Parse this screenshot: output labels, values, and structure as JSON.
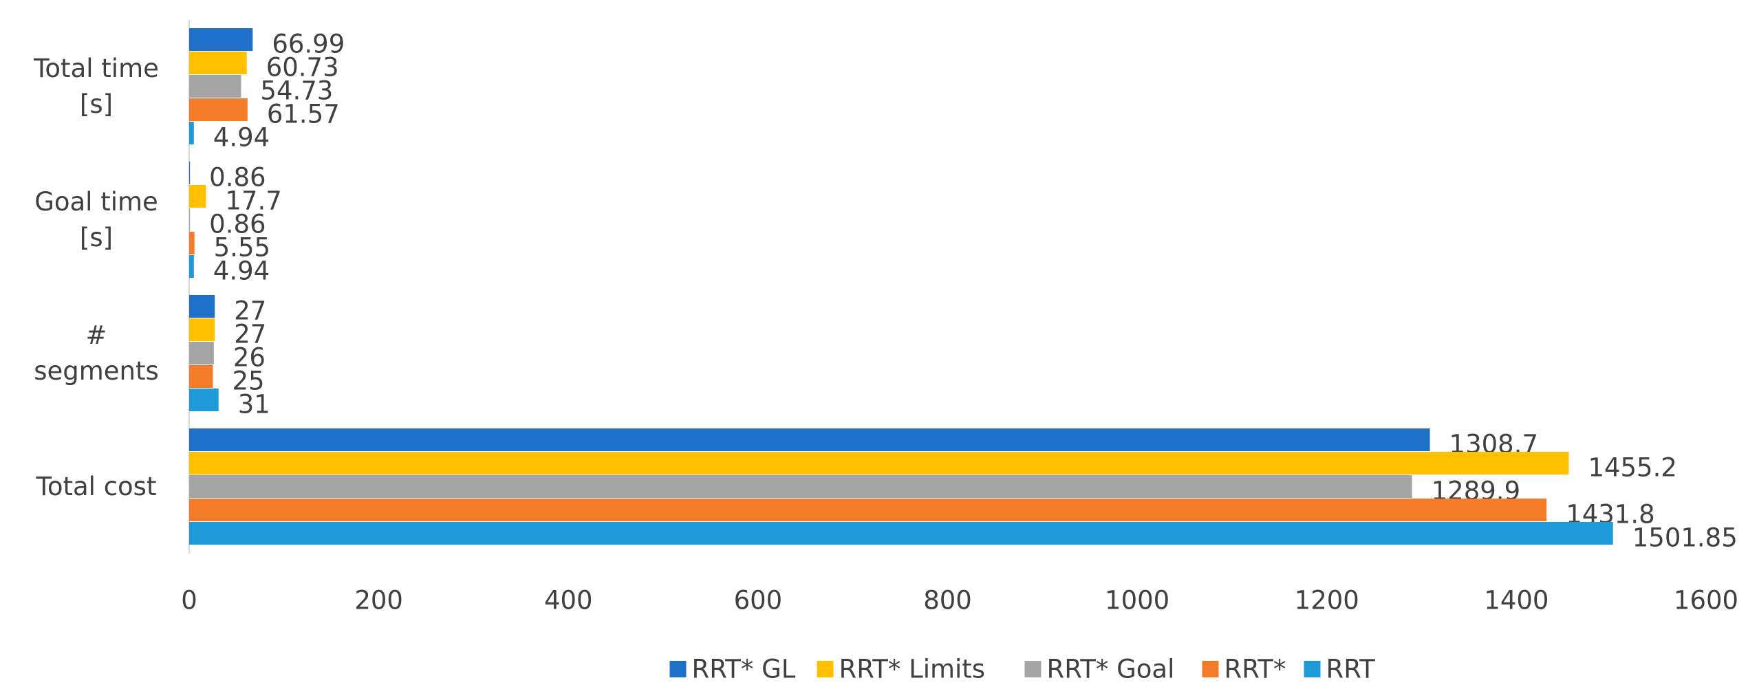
{
  "chart_data": {
    "type": "hbar",
    "categories": [
      "Total time [s]",
      "Goal time [s]",
      "# segments",
      "Total cost"
    ],
    "series": [
      {
        "name": "RRT* GL",
        "color": "#1f70c8",
        "values": [
          66.99,
          0.86,
          27,
          1308.7
        ]
      },
      {
        "name": "RRT* Limits",
        "color": "#ffc000",
        "values": [
          60.73,
          17.7,
          27,
          1455.2
        ]
      },
      {
        "name": "RRT* Goal",
        "color": "#a5a5a5",
        "values": [
          54.73,
          0.86,
          26,
          1289.9
        ]
      },
      {
        "name": "RRT*",
        "color": "#f47b28",
        "values": [
          61.57,
          5.55,
          25,
          1431.8
        ]
      },
      {
        "name": "RRT",
        "color": "#1f9ad8",
        "values": [
          4.94,
          4.94,
          31,
          1501.85
        ]
      }
    ],
    "xlim": [
      0,
      1600
    ],
    "xticks": [
      0,
      200,
      400,
      600,
      800,
      1000,
      1200,
      1400,
      1600
    ],
    "legend": "bottom"
  }
}
